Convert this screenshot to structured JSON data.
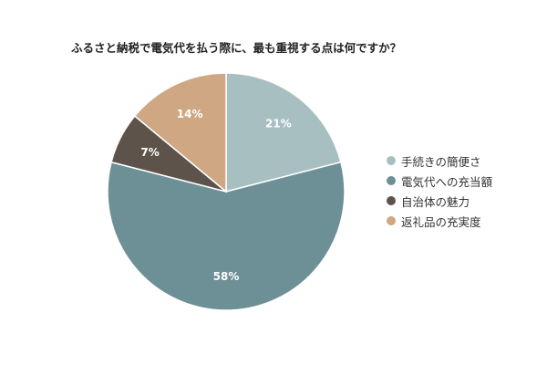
{
  "chart_data": {
    "type": "pie",
    "title": "ふるさと納税で電気代を払う際に、最も重視する点は何ですか？",
    "slices": [
      {
        "label": "手続きの簡便さ",
        "value": 21,
        "display": "21%",
        "color": "#a8bfc1"
      },
      {
        "label": "電気代への充当額",
        "value": 58,
        "display": "58%",
        "color": "#6d9096"
      },
      {
        "label": "自治体の魅力",
        "value": 7,
        "display": "7%",
        "color": "#5e534a"
      },
      {
        "label": "返礼品の充実度",
        "value": 14,
        "display": "14%",
        "color": "#cfa783"
      }
    ],
    "start_angle_deg": 0,
    "direction": "clockwise",
    "legend_position": "right"
  }
}
